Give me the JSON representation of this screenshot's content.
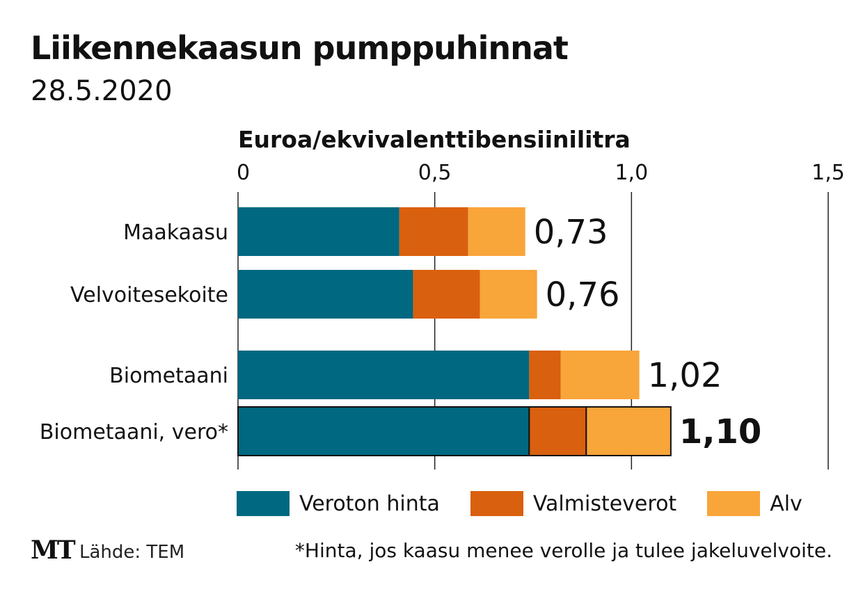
{
  "title": "Liikennekaasun pumppuhinnat",
  "subtitle": "28.5.2020",
  "colors": {
    "veroton": "#006880",
    "valmisteverot": "#d9600e",
    "alv": "#f8a53a",
    "axis": "#222222",
    "text": "#111111"
  },
  "chart_data": {
    "type": "bar",
    "orientation": "horizontal",
    "stacked": true,
    "title": "Liikennekaasun pumppuhinnat",
    "xlabel": "Euroa/ekvivalenttibensiinilitra",
    "ylabel": "",
    "xlim": [
      0,
      1.5
    ],
    "ticks": [
      0,
      0.5,
      1.0,
      1.5
    ],
    "tick_labels": [
      "0",
      "0,5",
      "1,0",
      "1,5"
    ],
    "categories": [
      "Maakaasu",
      "Velvoitesekoite",
      "Biometaani",
      "Biometaani, vero*"
    ],
    "series": [
      {
        "name": "Veroton hinta",
        "values": [
          0.41,
          0.445,
          0.74,
          0.74
        ]
      },
      {
        "name": "Valmisteverot",
        "values": [
          0.175,
          0.17,
          0.08,
          0.145
        ]
      },
      {
        "name": "Alv",
        "values": [
          0.145,
          0.145,
          0.2,
          0.215
        ]
      }
    ],
    "totals": [
      0.73,
      0.76,
      1.02,
      1.1
    ],
    "total_labels": [
      "0,73",
      "0,76",
      "1,02",
      "1,10"
    ],
    "highlighted": [
      false,
      false,
      false,
      true
    ],
    "legend_position": "bottom",
    "grid": true
  },
  "legend": [
    {
      "label": "Veroton hinta",
      "color": "#006880"
    },
    {
      "label": "Valmisteverot",
      "color": "#d9600e"
    },
    {
      "label": "Alv",
      "color": "#f8a53a"
    }
  ],
  "footer": {
    "logo": "MT",
    "source": "Lähde: TEM",
    "footnote": "*Hinta, jos kaasu menee verolle ja tulee jakeluvelvoite."
  }
}
